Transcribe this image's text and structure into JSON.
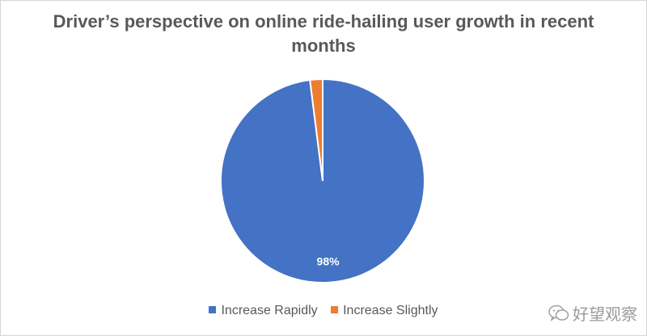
{
  "chart_data": {
    "type": "pie",
    "title": "Driver’s perspective on online ride-hailing user growth in recent months",
    "categories": [
      "Increase Rapidly",
      "Increase Slightly"
    ],
    "values": [
      98,
      2
    ],
    "colors": [
      "#4472C4",
      "#ED7D31"
    ],
    "data_labels": [
      "98%",
      ""
    ],
    "legend_position": "bottom"
  },
  "watermark": {
    "text": "好望观察",
    "icon": "wechat-icon"
  }
}
